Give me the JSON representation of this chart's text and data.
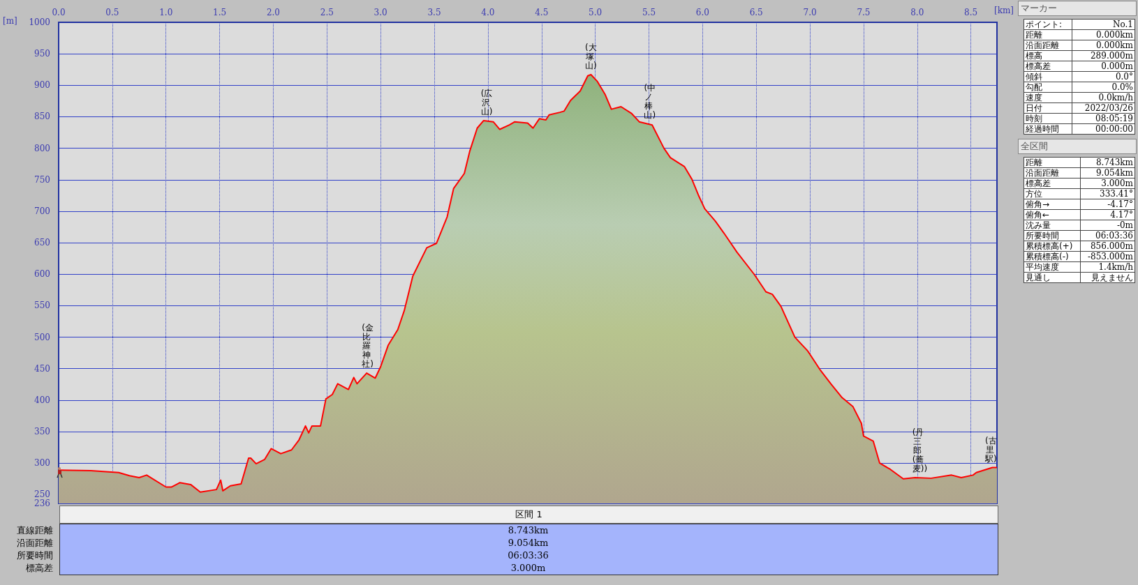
{
  "chart_data": [
    {
      "type": "area",
      "xlabel": "[km]",
      "ylabel": "[m]",
      "xlim": [
        0,
        8.743
      ],
      "ylim": [
        236,
        1000
      ],
      "xticks": [
        {
          "value": 0,
          "label": "0.0"
        },
        0.5,
        {
          "value": 1,
          "label": "1.0"
        },
        1.5,
        {
          "value": 2,
          "label": "2.0"
        },
        2.5,
        {
          "value": 3,
          "label": "3.0"
        },
        3.5,
        {
          "value": 4,
          "label": "4.0"
        },
        4.5,
        {
          "value": 5,
          "label": "5.0"
        },
        5.5,
        {
          "value": 6,
          "label": "6.0"
        },
        6.5,
        {
          "value": 7,
          "label": "7.0"
        },
        7.5,
        {
          "value": 8,
          "label": "8.0"
        },
        8.5
      ],
      "yticks": [
        236,
        250,
        300,
        350,
        400,
        450,
        500,
        550,
        600,
        650,
        700,
        750,
        800,
        850,
        900,
        950,
        1000
      ],
      "grid": true,
      "marker": "none",
      "line_style": "solid",
      "series": [
        {
          "color": "#ff0000",
          "x": [
            0,
            0.3,
            0.56,
            0.66,
            0.75,
            0.82,
            1.0,
            1.05,
            1.13,
            1.23,
            1.32,
            1.47,
            1.51,
            1.53,
            1.6,
            1.7,
            1.77,
            1.79,
            1.84,
            1.92,
            1.98,
            2.07,
            2.17,
            2.24,
            2.3,
            2.33,
            2.36,
            2.44,
            2.49,
            2.55,
            2.6,
            2.7,
            2.75,
            2.78,
            2.87,
            2.95,
            3.0,
            3.07,
            3.16,
            3.22,
            3.3,
            3.43,
            3.52,
            3.62,
            3.68,
            3.78,
            3.83,
            3.9,
            3.96,
            4.05,
            4.11,
            4.2,
            4.25,
            4.37,
            4.42,
            4.48,
            4.54,
            4.57,
            4.67,
            4.71,
            4.77,
            4.86,
            4.93,
            4.96,
            5.02,
            5.09,
            5.15,
            5.24,
            5.34,
            5.41,
            5.53,
            5.64,
            5.7,
            5.83,
            5.9,
            5.96,
            6.02,
            6.12,
            6.2,
            6.32,
            6.48,
            6.59,
            6.65,
            6.73,
            6.86,
            6.98,
            7.1,
            7.2,
            7.3,
            7.4,
            7.48,
            7.5,
            7.59,
            7.65,
            7.75,
            7.87,
            7.98,
            8.13,
            8.32,
            8.41,
            8.52,
            8.55,
            8.7,
            8.743
          ],
          "values": [
            289,
            288,
            285,
            280,
            277,
            281,
            262,
            262,
            269,
            266,
            254,
            258,
            273,
            256,
            264,
            267,
            308,
            308,
            299,
            306,
            323,
            315,
            321,
            337,
            359,
            348,
            359,
            359,
            402,
            409,
            426,
            417,
            436,
            426,
            443,
            435,
            453,
            487,
            512,
            542,
            597,
            642,
            649,
            691,
            736,
            760,
            795,
            832,
            844,
            842,
            830,
            837,
            842,
            840,
            832,
            847,
            845,
            853,
            857,
            859,
            876,
            891,
            915,
            917,
            906,
            886,
            862,
            866,
            855,
            842,
            837,
            800,
            785,
            771,
            751,
            726,
            704,
            684,
            665,
            635,
            600,
            572,
            568,
            549,
            500,
            478,
            447,
            425,
            404,
            390,
            363,
            343,
            335,
            300,
            290,
            275,
            277,
            276,
            281,
            277,
            281,
            285,
            293,
            293
          ]
        }
      ],
      "annotations": [
        {
          "text": "(金比羅神社)",
          "x": 2.87,
          "y": 443
        },
        {
          "text": "(広沢山)",
          "x": 3.98,
          "y": 844
        },
        {
          "text": "(大塚山)",
          "x": 4.95,
          "y": 917
        },
        {
          "text": "(中ノ棒山)",
          "x": 5.5,
          "y": 838
        },
        {
          "text": "(丹三郎(蕎麦))",
          "x": 8.0,
          "y": 277
        },
        {
          "text": "(古里駅)",
          "x": 8.72,
          "y": 293
        }
      ]
    },
    {
      "type": "other",
      "title": "マーカー",
      "annotations": [
        "ポイント:",
        "No.1",
        "距離",
        "0.000km",
        "沿面距離",
        "0.000km",
        "標高",
        "289.000m",
        "標高差",
        "0.000m",
        "傾斜",
        "0.0°",
        "勾配",
        "0.0%",
        "速度",
        "0.0km/h",
        "日付",
        "2022/03/26",
        "時刻",
        "08:05:19",
        "経過時間",
        "00:00:00"
      ]
    },
    {
      "type": "other",
      "title": "全区間",
      "annotations": [
        "距離",
        "8.743km",
        "沿面距離",
        "9.054km",
        "標高差",
        "3.000m",
        "方位",
        "333.41°",
        "俯角→",
        "-4.17°",
        "俯角←",
        "4.17°",
        "沈み量",
        "-0m",
        "所要時間",
        "06:03:36",
        "累積標高(+)",
        "856.000m",
        "累積標高(-)",
        "-853.000m",
        "平均速度",
        "1.4km/h",
        "見通し",
        "見えません"
      ]
    },
    {
      "type": "other",
      "title": "区間 1",
      "annotations": [
        "直線距離",
        "8.743km",
        "沿面距離",
        "9.054km",
        "所要時間",
        "06:03:36",
        "標高差",
        "3.000m"
      ]
    }
  ]
}
